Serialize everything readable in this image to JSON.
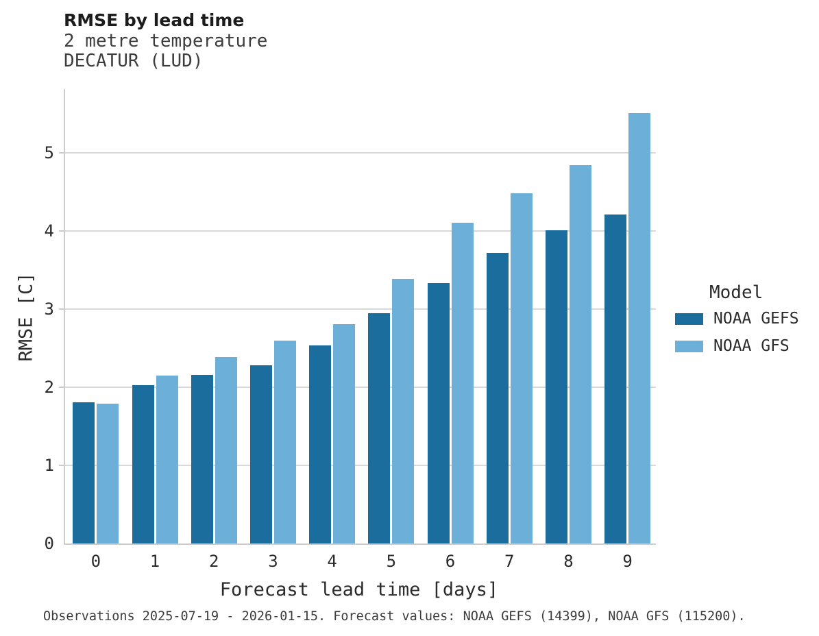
{
  "header": {
    "title": "RMSE by lead time",
    "subtitle_line1": "2 metre temperature",
    "subtitle_line2": "DECATUR (LUD)"
  },
  "legend": {
    "title": "Model",
    "items": [
      {
        "label": "NOAA GEFS",
        "color": "#1a6d9c"
      },
      {
        "label": "NOAA GFS",
        "color": "#6cb0d9"
      }
    ]
  },
  "footer": {
    "text": "Observations 2025-07-19 - 2026-01-15. Forecast values: NOAA GEFS (14399), NOAA GFS (115200)."
  },
  "chart_data": {
    "type": "bar",
    "title": "RMSE by lead time",
    "subtitle": [
      "2 metre temperature",
      "DECATUR (LUD)"
    ],
    "xlabel": "Forecast lead time [days]",
    "ylabel": "RMSE [C]",
    "categories": [
      "0",
      "1",
      "2",
      "3",
      "4",
      "5",
      "6",
      "7",
      "8",
      "9"
    ],
    "series": [
      {
        "name": "NOAA GEFS",
        "color": "#1a6d9c",
        "values": [
          1.81,
          2.03,
          2.16,
          2.28,
          2.54,
          2.95,
          3.34,
          3.72,
          4.01,
          4.21
        ]
      },
      {
        "name": "NOAA GFS",
        "color": "#6cb0d9",
        "values": [
          1.79,
          2.15,
          2.39,
          2.6,
          2.81,
          3.39,
          4.11,
          4.49,
          4.85,
          5.51
        ]
      }
    ],
    "ylim": [
      0,
      5.82
    ],
    "yticks": [
      0,
      1,
      2,
      3,
      4,
      5
    ],
    "grid": "horizontal",
    "gridline_color": "#d9d9d9",
    "axis_color": "#cccccc",
    "legend_position": "right",
    "legend_title": "Model"
  }
}
